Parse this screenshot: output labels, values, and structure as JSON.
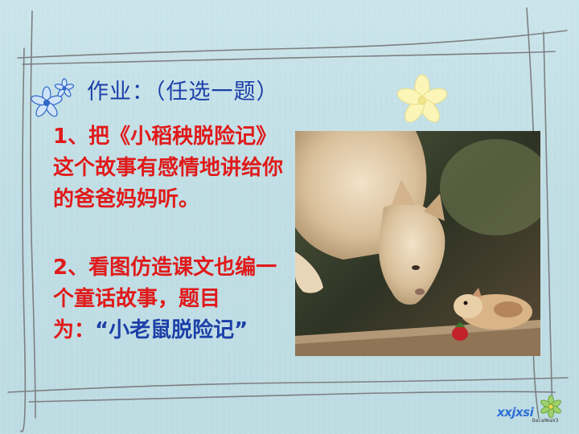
{
  "title": "作业：（任选一题）",
  "item1": "1、把《小稻秧脱险记》这个故事有感情地讲给你的爸爸妈妈听。",
  "item2_prefix": "2、看图仿造课文也编一个童话故事，题目为：",
  "item2_title": "“小老鼠脱险记”",
  "photo_subject": "cat-and-hamster-photo",
  "logo": {
    "text": "xxjxsi",
    "subtext": "Daca0maV3"
  },
  "colors": {
    "background": "#c4e0e6",
    "title": "#1c3fa8",
    "item": "#e01a1a",
    "frame": "#8a8a8a"
  }
}
